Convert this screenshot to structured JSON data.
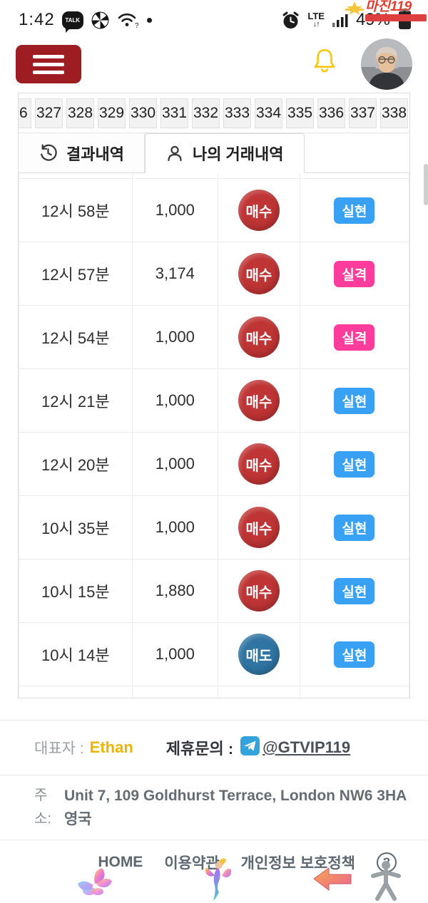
{
  "status_bar": {
    "time": "1:42",
    "network": "LTE",
    "network_arrows": "↓↑",
    "battery": "49%"
  },
  "watermark": {
    "title": "마진119"
  },
  "pagination": {
    "pages": [
      "6",
      "327",
      "328",
      "329",
      "330",
      "331",
      "332",
      "333",
      "334",
      "335",
      "336",
      "337",
      "338"
    ]
  },
  "tabs": [
    {
      "label": "결과내역",
      "active": false
    },
    {
      "label": "나의 거래내역",
      "active": true
    }
  ],
  "table": {
    "rows": [
      {
        "time": "12시 58분",
        "amount": "1,000",
        "side": "매수",
        "side_type": "buy",
        "status": "실현",
        "status_type": "realized"
      },
      {
        "time": "12시 57분",
        "amount": "3,174",
        "side": "매수",
        "side_type": "buy",
        "status": "실격",
        "status_type": "disqualified"
      },
      {
        "time": "12시 54분",
        "amount": "1,000",
        "side": "매수",
        "side_type": "buy",
        "status": "실격",
        "status_type": "disqualified"
      },
      {
        "time": "12시 21분",
        "amount": "1,000",
        "side": "매수",
        "side_type": "buy",
        "status": "실현",
        "status_type": "realized"
      },
      {
        "time": "12시 20분",
        "amount": "1,000",
        "side": "매수",
        "side_type": "buy",
        "status": "실현",
        "status_type": "realized"
      },
      {
        "time": "10시 35분",
        "amount": "1,000",
        "side": "매수",
        "side_type": "buy",
        "status": "실현",
        "status_type": "realized"
      },
      {
        "time": "10시 15분",
        "amount": "1,880",
        "side": "매수",
        "side_type": "buy",
        "status": "실현",
        "status_type": "realized"
      },
      {
        "time": "10시 14분",
        "amount": "1,000",
        "side": "매도",
        "side_type": "sell",
        "status": "실현",
        "status_type": "realized"
      }
    ]
  },
  "colors": {
    "buy": "#bf3434",
    "sell": "#2f74a3",
    "realized": "#38a1f4",
    "disqualified": "#fd3c9c",
    "menu_red": "#9e1d22",
    "bell_yellow": "#ffc400",
    "name_yellow": "#f0b400",
    "telegram_blue": "#33a3dc",
    "watermark_red": "#e23b2e"
  },
  "footer": {
    "ceo_label": "대표자 :",
    "ceo_name": "Ethan",
    "partner_label": "제휴문의 :",
    "telegram_handle": "@GTVIP119",
    "address_label": "주\n소:",
    "address_line1": "Unit 7, 109 Goldhurst Terrace, London NW6 3HA",
    "address_line2": "영국",
    "nav": [
      "HOME",
      "이용약관",
      "개인정보 보호정책"
    ],
    "help_label": "?"
  }
}
